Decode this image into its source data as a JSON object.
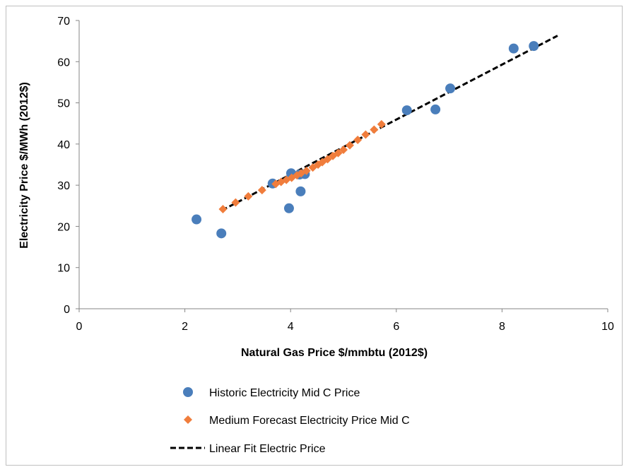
{
  "chart_data": {
    "type": "scatter",
    "xlabel": "Natural Gas Price $/mmbtu (2012$)",
    "ylabel": "Electricity Price $/MWh (2012$)",
    "xlim": [
      0,
      10
    ],
    "ylim": [
      0,
      70
    ],
    "x_ticks": [
      "0",
      "2",
      "4",
      "6",
      "8",
      "10"
    ],
    "y_ticks": [
      "0",
      "10",
      "20",
      "30",
      "40",
      "50",
      "60",
      "70"
    ],
    "grid": false,
    "legend_position": "bottom",
    "series": [
      {
        "name": "Historic Electricity Mid C Price",
        "marker": "circle",
        "color": "#4a7ebb",
        "points": [
          [
            2.22,
            21.7
          ],
          [
            2.69,
            18.3
          ],
          [
            3.66,
            30.4
          ],
          [
            3.97,
            24.4
          ],
          [
            4.01,
            32.9
          ],
          [
            4.17,
            32.6
          ],
          [
            4.19,
            28.5
          ],
          [
            4.27,
            32.7
          ],
          [
            6.2,
            48.2
          ],
          [
            6.74,
            48.4
          ],
          [
            7.02,
            53.5
          ],
          [
            8.22,
            63.2
          ],
          [
            8.6,
            63.8
          ]
        ]
      },
      {
        "name": "Medium Forecast Electricity Price Mid C",
        "marker": "diamond",
        "color": "#f07d3c",
        "points": [
          [
            2.72,
            24.2
          ],
          [
            2.96,
            25.8
          ],
          [
            3.2,
            27.3
          ],
          [
            3.46,
            28.8
          ],
          [
            3.72,
            30.3
          ],
          [
            3.82,
            30.8
          ],
          [
            3.92,
            31.3
          ],
          [
            4.02,
            31.8
          ],
          [
            4.12,
            32.4
          ],
          [
            4.2,
            32.9
          ],
          [
            4.3,
            33.5
          ],
          [
            4.42,
            34.3
          ],
          [
            4.52,
            35.0
          ],
          [
            4.6,
            35.6
          ],
          [
            4.7,
            36.3
          ],
          [
            4.8,
            37.1
          ],
          [
            4.9,
            37.8
          ],
          [
            5.0,
            38.6
          ],
          [
            5.12,
            39.7
          ],
          [
            5.27,
            41.0
          ],
          [
            5.42,
            42.3
          ],
          [
            5.58,
            43.5
          ],
          [
            5.72,
            44.8
          ]
        ]
      },
      {
        "name": "Linear Fit Electric Price",
        "marker": "dashed-line",
        "color": "#000000",
        "points": [
          [
            2.7,
            23.9
          ],
          [
            9.05,
            66.3
          ]
        ]
      }
    ]
  }
}
